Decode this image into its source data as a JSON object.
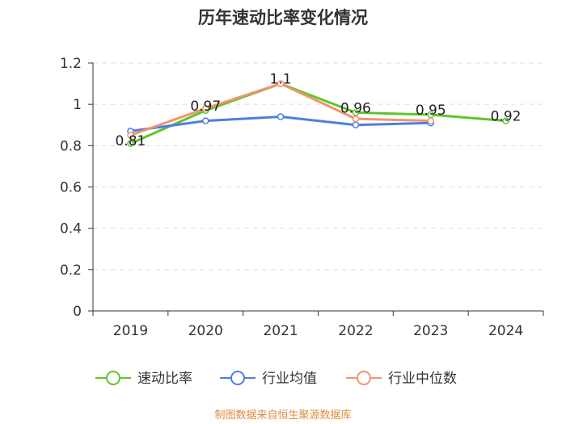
{
  "title": "历年速动比率变化情况",
  "source": "制图数据来自恒生聚源数据库",
  "chart_data": {
    "type": "line",
    "title": "历年速动比率变化情况",
    "categories": [
      "2019",
      "2020",
      "2021",
      "2022",
      "2023",
      "2024"
    ],
    "ylim": [
      0,
      1.2
    ],
    "yticks": [
      "0",
      "0.2",
      "0.4",
      "0.6",
      "0.8",
      "1",
      "1.2"
    ],
    "grid": true,
    "legend_position": "bottom",
    "series": [
      {
        "name": "速动比率",
        "color": "#5fc52e",
        "values": [
          0.81,
          0.97,
          1.1,
          0.96,
          0.95,
          0.92
        ],
        "labels": [
          "0.81",
          "0.97",
          "1.1",
          "0.96",
          "0.95",
          "0.92"
        ]
      },
      {
        "name": "行业均值",
        "color": "#4e7fe0",
        "values": [
          0.87,
          0.92,
          0.94,
          0.9,
          0.91,
          null
        ]
      },
      {
        "name": "行业中位数",
        "color": "#f0956a",
        "values": [
          0.85,
          0.98,
          1.1,
          0.93,
          0.92,
          null
        ]
      }
    ]
  }
}
